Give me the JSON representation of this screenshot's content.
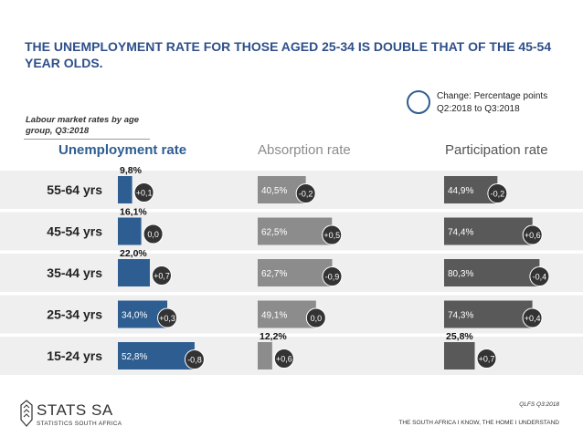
{
  "title": "THE UNEMPLOYMENT RATE FOR THOSE AGED 25-34 IS DOUBLE THAT OF THE 45-54 YEAR OLDS.",
  "subtitle": "Labour market rates by age group, Q3:2018",
  "legend": {
    "line1": "Change: Percentage points",
    "line2": "Q2:2018 to Q3:2018"
  },
  "footer": {
    "source": "QLFS Q3:2018",
    "tagline": "THE SOUTH AFRICA I KNOW, THE HOME I UNDERSTAND",
    "logo_word": "STATS SA",
    "logo_sub": "STATISTICS SOUTH AFRICA"
  },
  "colors": {
    "unemployment": "#2e5d91",
    "absorption": "#8c8c8c",
    "participation": "#595959",
    "change_circle": "#333333",
    "band": "#efefef",
    "title": "#2e4f8a"
  },
  "chart_data": [
    {
      "type": "bar",
      "title": "Unemployment rate",
      "categories": [
        "55-64 yrs",
        "45-54 yrs",
        "35-44 yrs",
        "25-34 yrs",
        "15-24 yrs"
      ],
      "values": [
        9.8,
        16.1,
        22.0,
        34.0,
        52.8
      ],
      "labels": [
        "9,8%",
        "16,1%",
        "22,0%",
        "34,0%",
        "52,8%"
      ],
      "changes": [
        "+0,1",
        "0,0",
        "+0,7",
        "+0,3",
        "-0,8"
      ],
      "orientation": "horizontal"
    },
    {
      "type": "bar",
      "title": "Absorption rate",
      "categories": [
        "55-64 yrs",
        "45-54 yrs",
        "35-44 yrs",
        "25-34 yrs",
        "15-24 yrs"
      ],
      "values": [
        40.5,
        62.5,
        62.7,
        49.1,
        12.2
      ],
      "labels": [
        "40,5%",
        "62,5%",
        "62,7%",
        "49,1%",
        "12,2%"
      ],
      "changes": [
        "-0,2",
        "+0,5",
        "-0,9",
        "0,0",
        "+0,6"
      ],
      "orientation": "horizontal"
    },
    {
      "type": "bar",
      "title": "Participation rate",
      "categories": [
        "55-64 yrs",
        "45-54 yrs",
        "35-44 yrs",
        "25-34 yrs",
        "15-24 yrs"
      ],
      "values": [
        44.9,
        74.4,
        80.3,
        74.3,
        25.8
      ],
      "labels": [
        "44,9%",
        "74,4%",
        "80,3%",
        "74,3%",
        "25,8%"
      ],
      "changes": [
        "-0,2",
        "+0,6",
        "-0,4",
        "+0,4",
        "+0,7"
      ],
      "orientation": "horizontal"
    }
  ]
}
